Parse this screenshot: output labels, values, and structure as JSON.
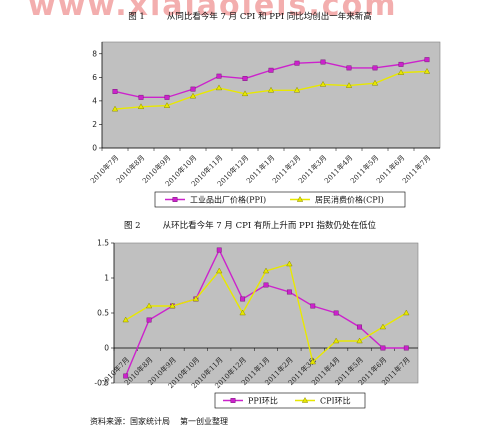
{
  "watermark": "www.xiaiaoiels.com",
  "figure1": {
    "number": "图 1",
    "title": "从同比看今年 7 月 CPI 和 PPI 同比均创出一年来新高"
  },
  "figure2": {
    "number": "图 2",
    "title": "从环比看今年 7 月 CPI 有所上升而 PPI 指数仍处在低位"
  },
  "source": {
    "label": "资料来源：国家统计局",
    "org": "第一创业整理"
  },
  "colors": {
    "plot_bg": "#c0c0c0",
    "ppi": "#cc22cc",
    "cpi": "#e8e800",
    "marker_line": "#888888"
  },
  "chart_data": [
    {
      "type": "line",
      "title": "",
      "xlabel": "",
      "ylabel": "",
      "ylim": [
        0,
        9
      ],
      "yticks": [
        0,
        2,
        4,
        6,
        8
      ],
      "grid": false,
      "legend_position": "bottom",
      "categories": [
        "2010年7月",
        "2010年8月",
        "2010年9月",
        "2010年10月",
        "2010年11月",
        "2010年12月",
        "2011年1月",
        "2011年2月",
        "2011年3月",
        "2011年4月",
        "2011年5月",
        "2011年6月",
        "2011年7月"
      ],
      "series": [
        {
          "name": "工业品出厂价格(PPI)",
          "color": "#cc22cc",
          "marker": "square",
          "values": [
            4.8,
            4.3,
            4.3,
            5.0,
            6.1,
            5.9,
            6.6,
            7.2,
            7.3,
            6.8,
            6.8,
            7.1,
            7.5
          ]
        },
        {
          "name": "居民消费价格(CPI)",
          "color": "#e8e800",
          "marker": "triangle",
          "values": [
            3.3,
            3.5,
            3.6,
            4.4,
            5.1,
            4.6,
            4.9,
            4.9,
            5.4,
            5.3,
            5.5,
            6.4,
            6.5
          ]
        }
      ]
    },
    {
      "type": "line",
      "title": "",
      "xlabel": "",
      "ylabel": "",
      "ylim": [
        -0.5,
        1.5
      ],
      "yticks": [
        -0.5,
        0,
        0.5,
        1,
        1.5
      ],
      "grid": false,
      "legend_position": "bottom",
      "categories": [
        "2010年7月",
        "2010年8月",
        "2010年9月",
        "2010年10月",
        "2010年11月",
        "2010年12月",
        "2011年1月",
        "2011年2月",
        "2011年3月",
        "2011年4月",
        "2011年5月",
        "2011年6月",
        "2011年7月"
      ],
      "series": [
        {
          "name": "PPI环比",
          "color": "#cc22cc",
          "marker": "square",
          "values": [
            -0.4,
            0.4,
            0.6,
            0.7,
            1.4,
            0.7,
            0.9,
            0.8,
            0.6,
            0.5,
            0.3,
            0.0,
            0.0
          ]
        },
        {
          "name": "CPI环比",
          "color": "#e8e800",
          "marker": "triangle",
          "values": [
            0.4,
            0.6,
            0.6,
            0.7,
            1.1,
            0.5,
            1.1,
            1.2,
            -0.2,
            0.1,
            0.1,
            0.3,
            0.5
          ]
        }
      ]
    }
  ]
}
